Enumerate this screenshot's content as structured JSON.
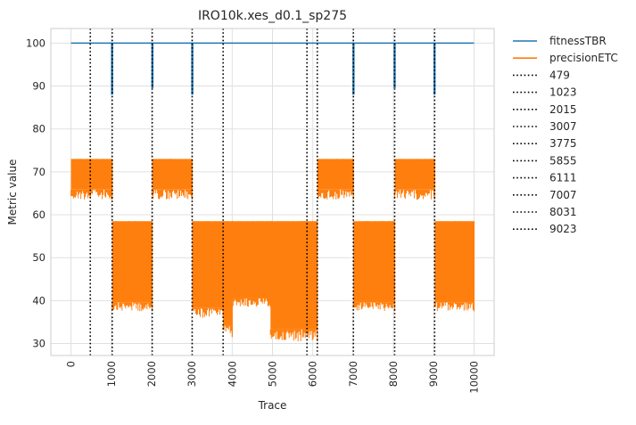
{
  "chart_data": {
    "type": "line",
    "title": "IRO10k.xes_d0.1_sp275",
    "xlabel": "Trace",
    "ylabel": "Metric value",
    "xlim": [
      -500,
      10500
    ],
    "ylim": [
      27.2,
      103.4
    ],
    "xticks": [
      0,
      1000,
      2000,
      3000,
      4000,
      5000,
      6000,
      7000,
      8000,
      9000,
      10000
    ],
    "xtick_labels": [
      "0",
      "1000",
      "2000",
      "3000",
      "4000",
      "5000",
      "6000",
      "7000",
      "8000",
      "9000",
      "10000"
    ],
    "yticks": [
      30,
      40,
      50,
      60,
      70,
      80,
      90,
      100
    ],
    "ytick_labels": [
      "30",
      "40",
      "50",
      "60",
      "70",
      "80",
      "90",
      "100"
    ],
    "grid": true,
    "legend_position": "outside-right-top",
    "series": [
      {
        "name": "fitnessTBR",
        "color": "#1f77b4",
        "baseline": 100,
        "dips": [
          {
            "x": 1020,
            "y": 88
          },
          {
            "x": 2020,
            "y": 89.5
          },
          {
            "x": 3010,
            "y": 88
          },
          {
            "x": 7010,
            "y": 88
          },
          {
            "x": 8030,
            "y": 89.5
          },
          {
            "x": 9020,
            "y": 88
          }
        ],
        "x_range": [
          0,
          10000
        ]
      },
      {
        "name": "precisionETC",
        "color": "#ff7f0e",
        "segments": [
          {
            "x": [
              0,
              1023
            ],
            "top": 73,
            "bottom": 63.5
          },
          {
            "x": [
              1023,
              2015
            ],
            "top": 58.5,
            "bottom": 37.5
          },
          {
            "x": [
              2015,
              3007
            ],
            "top": 73,
            "bottom": 63.5
          },
          {
            "x": [
              3007,
              3775
            ],
            "top": 58.5,
            "bottom": 36
          },
          {
            "x": [
              3775,
              4000
            ],
            "top": 58.5,
            "bottom": 31.5
          },
          {
            "x": [
              4000,
              4950
            ],
            "top": 58.5,
            "bottom": 38.5
          },
          {
            "x": [
              4950,
              6111
            ],
            "top": 58.5,
            "bottom": 30.5
          },
          {
            "x": [
              6111,
              7007
            ],
            "top": 73,
            "bottom": 63.5
          },
          {
            "x": [
              7007,
              8031
            ],
            "top": 58.5,
            "bottom": 37.5
          },
          {
            "x": [
              8031,
              9023
            ],
            "top": 73,
            "bottom": 63.5
          },
          {
            "x": [
              9023,
              10000
            ],
            "top": 58.5,
            "bottom": 37.5
          }
        ]
      }
    ],
    "vlines": [
      {
        "name": "479",
        "x": 479
      },
      {
        "name": "1023",
        "x": 1023
      },
      {
        "name": "2015",
        "x": 2015
      },
      {
        "name": "3007",
        "x": 3007
      },
      {
        "name": "3775",
        "x": 3775
      },
      {
        "name": "5855",
        "x": 5855
      },
      {
        "name": "6111",
        "x": 6111
      },
      {
        "name": "7007",
        "x": 7007
      },
      {
        "name": "8031",
        "x": 8031
      },
      {
        "name": "9023",
        "x": 9023
      }
    ]
  }
}
